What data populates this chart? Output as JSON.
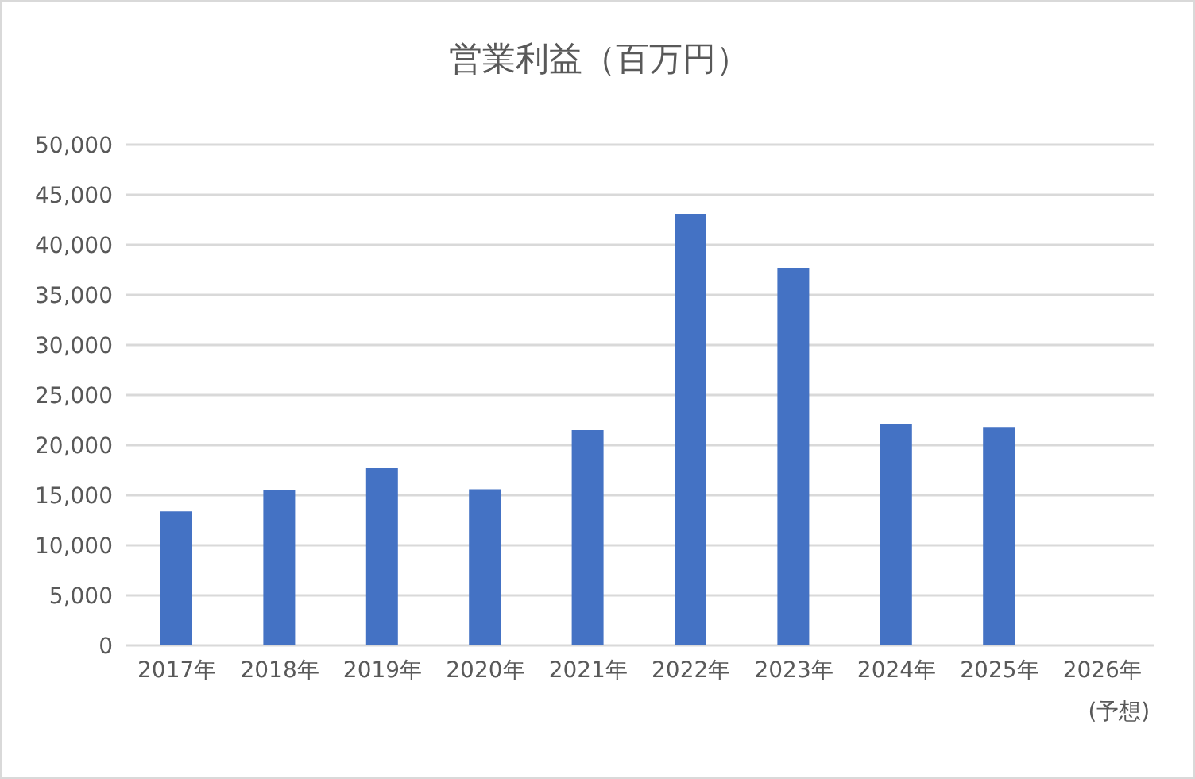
{
  "chart_data": {
    "type": "bar",
    "title": "営業利益（百万円）",
    "categories": [
      "2017年",
      "2018年",
      "2019年",
      "2020年",
      "2021年",
      "2022年",
      "2023年",
      "2024年",
      "2025年",
      "2026年\n(予想)"
    ],
    "values": [
      13400,
      15500,
      17700,
      15600,
      21500,
      43100,
      37700,
      22100,
      21800,
      null
    ],
    "color": "#4472c4",
    "ylim": [
      0,
      50000
    ],
    "yticks": [
      0,
      {
        "value": 5000,
        "label": "5,000"
      },
      {
        "value": 10000,
        "label": "10,000"
      },
      {
        "value": 15000,
        "label": "15,000"
      },
      {
        "value": 20000,
        "label": "20,000"
      },
      {
        "value": 25000,
        "label": "25,000"
      },
      {
        "value": 30000,
        "label": "30,000"
      },
      {
        "value": 35000,
        "label": "35,000"
      },
      {
        "value": 40000,
        "label": "40,000"
      },
      {
        "value": 45000,
        "label": "45,000"
      },
      {
        "value": 50000,
        "label": "50,000"
      }
    ],
    "grid": "y"
  }
}
